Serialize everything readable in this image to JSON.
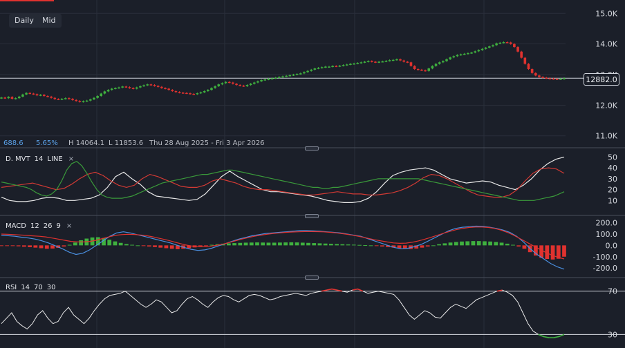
{
  "toolbar": {
    "daily_label": "Daily",
    "mid_label": "Mid"
  },
  "info": {
    "change": "688.6",
    "change_pct": "5.65%",
    "high": "H 14064.1",
    "low": "L 11853.6",
    "range": "Thu 28 Aug 2025 - Fri 3 Apr 2026"
  },
  "current_price": "12882.0",
  "panels": {
    "dmvt": {
      "name": "D. MVT",
      "period": "14",
      "style": "LINE",
      "close": "×"
    },
    "macd": {
      "name": "MACD",
      "fast": "12",
      "slow": "26",
      "signal": "9",
      "close": "×"
    },
    "rsi": {
      "name": "RSI",
      "period": "14",
      "overbought": "70",
      "oversold": "30"
    }
  },
  "colors": {
    "background": "#1b1f29",
    "up": "#3fb03f",
    "down": "#e0322f",
    "macd_line": "#4a8fe0",
    "signal_line": "#e0322f",
    "dmvt_white": "#e8e8e8",
    "dmvt_red": "#d33a34",
    "dmvt_green": "#3a9a3a",
    "grid": "#2a2f3a"
  },
  "chart_data": [
    {
      "type": "candlestick",
      "title": "",
      "y_ticks": [
        "11.0K",
        "12.0K",
        "13.0K",
        "14.0K",
        "15.0K"
      ],
      "ylim": [
        10700,
        15300
      ],
      "reference_line": 12882.0,
      "close": [
        12250,
        12230,
        12270,
        12210,
        12230,
        12280,
        12350,
        12400,
        12380,
        12360,
        12320,
        12340,
        12300,
        12280,
        12240,
        12200,
        12190,
        12210,
        12230,
        12210,
        12170,
        12140,
        12110,
        12130,
        12150,
        12190,
        12240,
        12300,
        12380,
        12450,
        12500,
        12540,
        12560,
        12580,
        12610,
        12590,
        12560,
        12540,
        12580,
        12620,
        12650,
        12680,
        12660,
        12630,
        12600,
        12560,
        12540,
        12500,
        12460,
        12430,
        12410,
        12400,
        12390,
        12370,
        12360,
        12390,
        12420,
        12460,
        12500,
        12560,
        12620,
        12680,
        12720,
        12760,
        12740,
        12700,
        12660,
        12640,
        12620,
        12660,
        12700,
        12740,
        12780,
        12820,
        12840,
        12860,
        12880,
        12900,
        12920,
        12940,
        12960,
        12980,
        13000,
        13020,
        13040,
        13080,
        13120,
        13160,
        13200,
        13220,
        13240,
        13260,
        13260,
        13280,
        13270,
        13290,
        13310,
        13330,
        13350,
        13360,
        13380,
        13400,
        13420,
        13440,
        13420,
        13400,
        13420,
        13430,
        13450,
        13470,
        13480,
        13500,
        13460,
        13420,
        13400,
        13280,
        13180,
        13160,
        13140,
        13120,
        13200,
        13280,
        13350,
        13400,
        13440,
        13500,
        13560,
        13600,
        13640,
        13660,
        13680,
        13700,
        13720,
        13760,
        13800,
        13840,
        13880,
        13920,
        13960,
        14020,
        14040,
        14060,
        14050,
        14000,
        13900,
        13750,
        13550,
        13350,
        13180,
        13050,
        12970,
        12920,
        12900,
        12880,
        12870,
        12860,
        12850,
        12860,
        12882
      ]
    },
    {
      "type": "line",
      "title": "",
      "y_ticks": [
        "10",
        "20",
        "30",
        "40",
        "50"
      ],
      "ylim": [
        0,
        56
      ],
      "series": [
        {
          "color": "#e8e8e8",
          "values": [
            13,
            10,
            9,
            9,
            10,
            12,
            13,
            12,
            10,
            10,
            11,
            12,
            15,
            22,
            32,
            36,
            30,
            25,
            18,
            14,
            13,
            12,
            11,
            10,
            11,
            16,
            24,
            32,
            37,
            32,
            28,
            24,
            20,
            18,
            18,
            17,
            16,
            15,
            14,
            12,
            10,
            9,
            8,
            8,
            9,
            12,
            18,
            26,
            33,
            36,
            38,
            39,
            40,
            38,
            34,
            30,
            28,
            26,
            27,
            28,
            27,
            24,
            22,
            20,
            24,
            30,
            38,
            44,
            48,
            50
          ]
        },
        {
          "color": "#d33a34",
          "values": [
            22,
            23,
            24,
            25,
            26,
            24,
            22,
            20,
            21,
            25,
            30,
            34,
            36,
            33,
            28,
            24,
            22,
            24,
            30,
            34,
            32,
            29,
            26,
            23,
            22,
            22,
            24,
            28,
            30,
            28,
            26,
            23,
            21,
            20,
            20,
            19,
            18,
            17,
            16,
            15,
            15,
            16,
            17,
            18,
            17,
            16,
            16,
            15,
            15,
            16,
            17,
            19,
            22,
            26,
            31,
            34,
            33,
            30,
            26,
            22,
            18,
            15,
            14,
            13,
            13,
            15,
            20,
            28,
            35,
            39,
            40,
            39,
            35
          ]
        },
        {
          "color": "#3a9a3a",
          "values": [
            27,
            26,
            25,
            24,
            23,
            22,
            20,
            17,
            15,
            14,
            16,
            20,
            28,
            38,
            44,
            46,
            42,
            35,
            27,
            20,
            15,
            13,
            12,
            12,
            12,
            13,
            14,
            16,
            18,
            20,
            22,
            24,
            26,
            27,
            28,
            29,
            30,
            31,
            32,
            33,
            34,
            34,
            35,
            36,
            37,
            38,
            38,
            37,
            36,
            35,
            34,
            33,
            32,
            31,
            30,
            29,
            28,
            27,
            26,
            25,
            24,
            23,
            22,
            22,
            21,
            21,
            22,
            22,
            23,
            24,
            25,
            26,
            27,
            28,
            29,
            30,
            30,
            30,
            30,
            30,
            30,
            30,
            30,
            30,
            29,
            28,
            27,
            26,
            25,
            24,
            23,
            22,
            21,
            20,
            19,
            18,
            17,
            16,
            15,
            14,
            13,
            12,
            11,
            10,
            10,
            10,
            10,
            11,
            12,
            13,
            14,
            16,
            18
          ]
        }
      ]
    },
    {
      "type": "bar+line",
      "title": "",
      "y_ticks": [
        "200.0",
        "100.0",
        "0.0",
        "-100.0",
        "-200.0"
      ],
      "ylim": [
        -260,
        240
      ],
      "histogram": [
        -2,
        -3,
        -5,
        -8,
        -12,
        -16,
        -20,
        -25,
        -30,
        -28,
        -22,
        -10,
        5,
        25,
        45,
        60,
        70,
        72,
        65,
        50,
        35,
        22,
        12,
        5,
        0,
        -5,
        -10,
        -15,
        -20,
        -25,
        -30,
        -34,
        -30,
        -25,
        -18,
        -10,
        -2,
        5,
        10,
        15,
        18,
        20,
        22,
        24,
        25,
        26,
        25,
        24,
        24,
        25,
        26,
        27,
        26,
        24,
        22,
        20,
        18,
        16,
        14,
        12,
        10,
        8,
        6,
        4,
        2,
        0,
        -5,
        -10,
        -15,
        -20,
        -25,
        -30,
        -32,
        -28,
        -20,
        -10,
        0,
        10,
        18,
        25,
        30,
        34,
        36,
        38,
        38,
        36,
        34,
        30,
        24,
        15,
        5,
        -10,
        -30,
        -60,
        -90,
        -110,
        -120,
        -125,
        -118,
        -100
      ],
      "series": [
        {
          "color": "#4a8fe0",
          "values": [
            90,
            85,
            80,
            72,
            65,
            55,
            40,
            20,
            -5,
            -30,
            -60,
            -80,
            -70,
            -40,
            0,
            40,
            80,
            110,
            120,
            110,
            95,
            80,
            65,
            50,
            35,
            20,
            0,
            -20,
            -35,
            -45,
            -40,
            -25,
            -5,
            15,
            35,
            55,
            70,
            85,
            95,
            105,
            110,
            115,
            120,
            125,
            130,
            130,
            128,
            125,
            120,
            115,
            110,
            100,
            90,
            80,
            60,
            40,
            20,
            0,
            -20,
            -30,
            -25,
            -10,
            10,
            40,
            70,
            100,
            130,
            150,
            160,
            165,
            170,
            168,
            160,
            150,
            135,
            115,
            80,
            30,
            -30,
            -80,
            -120,
            -160,
            -190,
            -210
          ]
        },
        {
          "color": "#e0322f",
          "values": [
            100,
            98,
            95,
            92,
            88,
            84,
            80,
            75,
            65,
            55,
            45,
            35,
            30,
            30,
            35,
            45,
            60,
            75,
            88,
            95,
            98,
            96,
            92,
            85,
            75,
            62,
            50,
            35,
            20,
            5,
            -5,
            -10,
            -12,
            -8,
            0,
            10,
            25,
            40,
            55,
            68,
            80,
            90,
            98,
            105,
            110,
            115,
            118,
            120,
            122,
            122,
            121,
            119,
            115,
            110,
            103,
            95,
            85,
            74,
            62,
            50,
            40,
            30,
            22,
            18,
            20,
            28,
            40,
            55,
            72,
            90,
            108,
            125,
            140,
            150,
            158,
            162,
            162,
            158,
            150,
            135,
            115,
            90,
            60,
            30,
            0,
            -30,
            -60,
            -85,
            -105,
            -120
          ]
        }
      ]
    },
    {
      "type": "line",
      "title": "",
      "y_ticks": [
        "70",
        "30"
      ],
      "ylim": [
        20,
        80
      ],
      "levels": [
        70,
        30
      ],
      "values": [
        40,
        45,
        50,
        42,
        38,
        35,
        40,
        48,
        52,
        45,
        40,
        42,
        50,
        55,
        48,
        44,
        40,
        45,
        52,
        58,
        63,
        66,
        67,
        68,
        70,
        66,
        62,
        58,
        55,
        58,
        62,
        60,
        55,
        50,
        52,
        58,
        63,
        65,
        62,
        58,
        55,
        60,
        64,
        66,
        65,
        62,
        60,
        63,
        66,
        67,
        66,
        64,
        62,
        63,
        65,
        66,
        67,
        68,
        67,
        66,
        68,
        69,
        70,
        71,
        72,
        71,
        70,
        69,
        71,
        72,
        70,
        68,
        69,
        70,
        69,
        68,
        67,
        62,
        55,
        48,
        44,
        48,
        52,
        50,
        46,
        45,
        50,
        55,
        58,
        56,
        54,
        58,
        62,
        64,
        66,
        68,
        70,
        71,
        69,
        66,
        60,
        50,
        40,
        33,
        30,
        28,
        27,
        27,
        28,
        30
      ]
    }
  ]
}
